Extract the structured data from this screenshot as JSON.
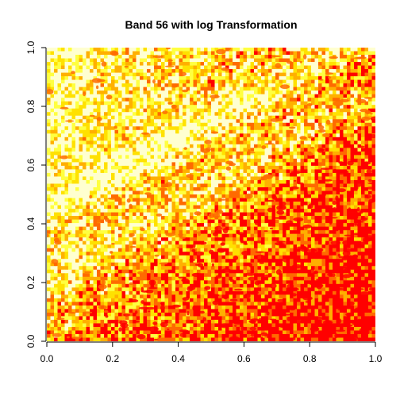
{
  "chart_data": {
    "type": "heatmap",
    "title": "Band 56 with log Transformation",
    "xlabel": "",
    "ylabel": "",
    "xlim": [
      0,
      1
    ],
    "ylim": [
      0,
      1
    ],
    "x_ticks": [
      "0.0",
      "0.2",
      "0.4",
      "0.6",
      "0.8",
      "1.0"
    ],
    "y_ticks": [
      "0.0",
      "0.2",
      "0.4",
      "0.6",
      "0.8",
      "1.0"
    ],
    "color_scale": [
      "#ff0000",
      "#ff6a00",
      "#ffb000",
      "#ffe100",
      "#ffff40",
      "#ffffd0"
    ],
    "legend": "none",
    "grid": false
  }
}
